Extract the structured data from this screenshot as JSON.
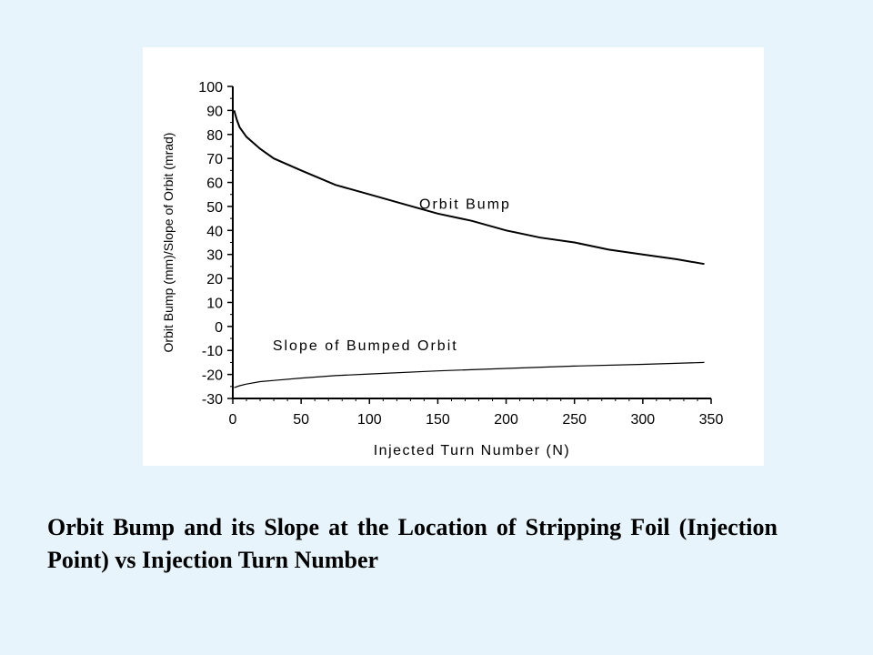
{
  "chart_data": {
    "type": "line",
    "xlabel": "Injected Turn Number (N)",
    "ylabel": "Orbit Bump (mm)/Slope of Orbit (mrad)",
    "xlim": [
      0,
      350
    ],
    "ylim": [
      -30,
      100
    ],
    "x_ticks": [
      0,
      50,
      100,
      150,
      200,
      250,
      300,
      350
    ],
    "y_ticks": [
      100,
      90,
      80,
      70,
      60,
      50,
      40,
      30,
      20,
      10,
      0,
      -10,
      -20,
      -30
    ],
    "grid": false,
    "series": [
      {
        "name": "Orbit Bump",
        "label_anchor": [
          170,
          49
        ],
        "x": [
          1,
          3,
          5,
          10,
          20,
          30,
          50,
          75,
          100,
          125,
          150,
          175,
          200,
          225,
          250,
          275,
          300,
          325,
          345
        ],
        "y": [
          90,
          86,
          83,
          79,
          74,
          70,
          65,
          59,
          55,
          51,
          47,
          44,
          40,
          37,
          35,
          32,
          30,
          28,
          26
        ]
      },
      {
        "name": "Slope of Bumped Orbit",
        "label_anchor": [
          97,
          -10
        ],
        "x": [
          1,
          5,
          10,
          20,
          30,
          50,
          75,
          100,
          150,
          200,
          250,
          300,
          345
        ],
        "y": [
          -25.5,
          -24.7,
          -24,
          -23,
          -22.5,
          -21.5,
          -20.5,
          -19.8,
          -18.5,
          -17.5,
          -16.5,
          -15.8,
          -15
        ]
      }
    ]
  },
  "caption": "Orbit Bump and its Slope at  the Location of Stripping Foil (Injection Point) vs Injection Turn Number"
}
